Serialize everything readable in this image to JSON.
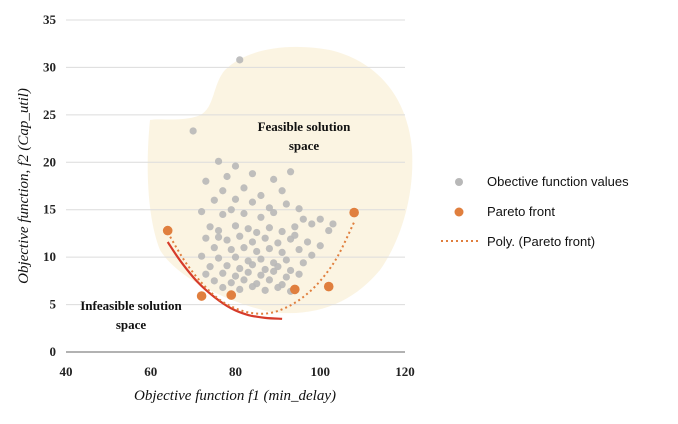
{
  "chart_data": {
    "type": "scatter",
    "title": "",
    "xlabel": "Objective function f1 (min_delay)",
    "ylabel": "Objective function, f2 (Cap_util)",
    "xlim": [
      40,
      120
    ],
    "ylim": [
      0,
      35
    ],
    "x_ticks": [
      40,
      60,
      80,
      100,
      120
    ],
    "y_ticks": [
      0,
      5,
      10,
      15,
      20,
      25,
      30,
      35
    ],
    "grid": "horizontal",
    "legend_position": "right",
    "annotations": {
      "feasible_line1": "Feasible solution",
      "feasible_line2": "space",
      "infeasible_line1": "Infeasible solution",
      "infeasible_line2": "space"
    },
    "series": [
      {
        "name": "Obective function values",
        "color": "#b8b8b8",
        "marker": "circle",
        "points": [
          [
            81,
            30.8
          ],
          [
            70,
            23.3
          ],
          [
            76,
            20.1
          ],
          [
            80,
            19.6
          ],
          [
            93,
            19
          ],
          [
            73,
            18
          ],
          [
            78,
            18.5
          ],
          [
            84,
            18.8
          ],
          [
            89,
            18.2
          ],
          [
            77,
            17
          ],
          [
            82,
            17.3
          ],
          [
            86,
            16.5
          ],
          [
            91,
            17
          ],
          [
            75,
            16
          ],
          [
            80,
            16.1
          ],
          [
            84,
            15.8
          ],
          [
            88,
            15.2
          ],
          [
            92,
            15.6
          ],
          [
            95,
            15.1
          ],
          [
            72,
            14.8
          ],
          [
            77,
            14.5
          ],
          [
            79,
            15
          ],
          [
            82,
            14.6
          ],
          [
            86,
            14.2
          ],
          [
            89,
            14.7
          ],
          [
            96,
            14
          ],
          [
            98,
            13.5
          ],
          [
            100,
            14
          ],
          [
            103,
            13.5
          ],
          [
            74,
            13.2
          ],
          [
            76,
            12.8
          ],
          [
            80,
            13.3
          ],
          [
            83,
            13
          ],
          [
            85,
            12.6
          ],
          [
            88,
            13.1
          ],
          [
            91,
            12.7
          ],
          [
            94,
            13.2
          ],
          [
            102,
            12.8
          ],
          [
            73,
            12
          ],
          [
            78,
            11.8
          ],
          [
            81,
            12.2
          ],
          [
            84,
            11.6
          ],
          [
            87,
            12
          ],
          [
            90,
            11.5
          ],
          [
            93,
            11.9
          ],
          [
            97,
            11.6
          ],
          [
            100,
            11.2
          ],
          [
            75,
            11
          ],
          [
            79,
            10.8
          ],
          [
            82,
            11
          ],
          [
            85,
            10.6
          ],
          [
            88,
            10.9
          ],
          [
            91,
            10.5
          ],
          [
            95,
            10.8
          ],
          [
            98,
            10.2
          ],
          [
            72,
            10.1
          ],
          [
            76,
            9.9
          ],
          [
            80,
            10
          ],
          [
            83,
            9.6
          ],
          [
            86,
            9.8
          ],
          [
            89,
            9.4
          ],
          [
            92,
            9.7
          ],
          [
            96,
            9.4
          ],
          [
            74,
            9
          ],
          [
            78,
            9.1
          ],
          [
            81,
            8.8
          ],
          [
            84,
            9.2
          ],
          [
            87,
            8.7
          ],
          [
            90,
            9
          ],
          [
            93,
            8.6
          ],
          [
            73,
            8.2
          ],
          [
            77,
            8.3
          ],
          [
            80,
            8
          ],
          [
            83,
            8.4
          ],
          [
            86,
            8.1
          ],
          [
            89,
            8.5
          ],
          [
            92,
            7.9
          ],
          [
            95,
            8.2
          ],
          [
            75,
            7.5
          ],
          [
            79,
            7.3
          ],
          [
            82,
            7.6
          ],
          [
            85,
            7.2
          ],
          [
            88,
            7.6
          ],
          [
            91,
            7.1
          ],
          [
            77,
            6.8
          ],
          [
            81,
            6.6
          ],
          [
            84,
            6.9
          ],
          [
            87,
            6.5
          ],
          [
            90,
            6.8
          ],
          [
            93,
            6.4
          ],
          [
            76,
            12.1
          ],
          [
            94,
            12.3
          ]
        ]
      },
      {
        "name": "Pareto front",
        "color": "#e07f3e",
        "marker": "circle",
        "points": [
          [
            64,
            12.8
          ],
          [
            72,
            5.9
          ],
          [
            79,
            6
          ],
          [
            94,
            6.6
          ],
          [
            102,
            6.9
          ],
          [
            108,
            14.7
          ]
        ]
      },
      {
        "name": "Poly. (Pareto front)",
        "color": "#e07f3e",
        "style": "dotted",
        "type": "line",
        "points": [
          [
            64,
            12.6
          ],
          [
            68,
            9.6
          ],
          [
            72,
            7.3
          ],
          [
            76,
            5.6
          ],
          [
            80,
            4.6
          ],
          [
            84,
            4.1
          ],
          [
            88,
            4.1
          ],
          [
            92,
            4.7
          ],
          [
            96,
            5.8
          ],
          [
            100,
            7.5
          ],
          [
            104,
            10
          ],
          [
            108,
            13.7
          ]
        ]
      },
      {
        "name": "",
        "color": "#d63b2a",
        "style": "solid",
        "type": "line",
        "points": [
          [
            64,
            11.6
          ],
          [
            67,
            9.6
          ],
          [
            71,
            7.4
          ],
          [
            75,
            5.8
          ],
          [
            79,
            4.6
          ],
          [
            83,
            3.9
          ],
          [
            87,
            3.6
          ],
          [
            91,
            3.5
          ]
        ]
      }
    ]
  }
}
